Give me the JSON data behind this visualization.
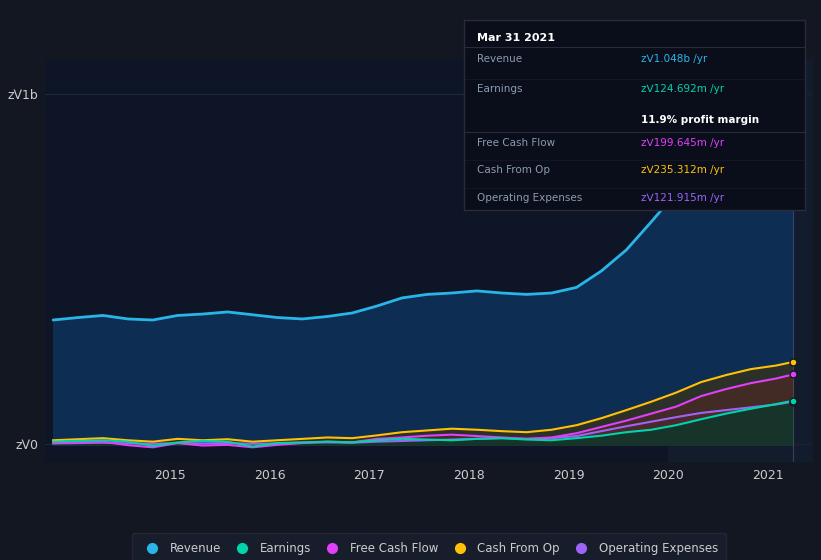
{
  "background_color": "#131722",
  "plot_bg_color": "#0d1526",
  "y_labels": [
    "zᐯ0",
    "zᐯ1b"
  ],
  "y_ticks": [
    0,
    1000000000
  ],
  "x_ticks": [
    2015,
    2016,
    2017,
    2018,
    2019,
    2020,
    2021
  ],
  "ylim": [
    -50000000,
    1100000000
  ],
  "xlim_start": 2013.75,
  "xlim_end": 2021.45,
  "series": {
    "Revenue": {
      "color": "#29b5e8",
      "fill_color": "#0a2a4a",
      "linewidth": 2.0
    },
    "Earnings": {
      "color": "#00d4aa",
      "linewidth": 1.5
    },
    "Free Cash Flow": {
      "color": "#e040fb",
      "linewidth": 1.5
    },
    "Cash From Op": {
      "color": "#ffc107",
      "linewidth": 1.5
    },
    "Operating Expenses": {
      "color": "#9c64f7",
      "linewidth": 1.5
    }
  },
  "revenue_x": [
    2013.83,
    2014.08,
    2014.33,
    2014.58,
    2014.83,
    2015.08,
    2015.33,
    2015.58,
    2015.83,
    2016.08,
    2016.33,
    2016.58,
    2016.83,
    2017.08,
    2017.33,
    2017.58,
    2017.83,
    2018.08,
    2018.33,
    2018.58,
    2018.83,
    2019.08,
    2019.33,
    2019.58,
    2019.83,
    2020.08,
    2020.33,
    2020.58,
    2020.83,
    2021.08,
    2021.25
  ],
  "revenue_y": [
    355000000.0,
    362000000.0,
    368000000.0,
    358000000.0,
    355000000.0,
    368000000.0,
    372000000.0,
    378000000.0,
    370000000.0,
    362000000.0,
    358000000.0,
    365000000.0,
    375000000.0,
    395000000.0,
    418000000.0,
    428000000.0,
    432000000.0,
    438000000.0,
    432000000.0,
    428000000.0,
    432000000.0,
    448000000.0,
    495000000.0,
    555000000.0,
    635000000.0,
    718000000.0,
    798000000.0,
    858000000.0,
    918000000.0,
    978000000.0,
    1048000000.0
  ],
  "earnings_x": [
    2013.83,
    2014.08,
    2014.33,
    2014.58,
    2014.83,
    2015.08,
    2015.33,
    2015.58,
    2015.83,
    2016.08,
    2016.33,
    2016.58,
    2016.83,
    2017.08,
    2017.33,
    2017.58,
    2017.83,
    2018.08,
    2018.33,
    2018.58,
    2018.83,
    2019.08,
    2019.33,
    2019.58,
    2019.83,
    2020.08,
    2020.33,
    2020.58,
    2020.83,
    2021.08,
    2021.25
  ],
  "earnings_y": [
    8000000.0,
    10000000.0,
    12000000.0,
    8000000.0,
    -4000000.0,
    6000000.0,
    10000000.0,
    8000000.0,
    -6000000.0,
    4000000.0,
    6000000.0,
    8000000.0,
    6000000.0,
    12000000.0,
    16000000.0,
    14000000.0,
    12000000.0,
    16000000.0,
    18000000.0,
    14000000.0,
    12000000.0,
    18000000.0,
    25000000.0,
    35000000.0,
    42000000.0,
    55000000.0,
    72000000.0,
    88000000.0,
    102000000.0,
    115000000.0,
    124692000.0
  ],
  "fcf_x": [
    2013.83,
    2014.08,
    2014.33,
    2014.58,
    2014.83,
    2015.08,
    2015.33,
    2015.58,
    2015.83,
    2016.08,
    2016.33,
    2016.58,
    2016.83,
    2017.08,
    2017.33,
    2017.58,
    2017.83,
    2018.08,
    2018.33,
    2018.58,
    2018.83,
    2019.08,
    2019.33,
    2019.58,
    2019.83,
    2020.08,
    2020.33,
    2020.58,
    2020.83,
    2021.08,
    2021.25
  ],
  "fcf_y": [
    4000000.0,
    6000000.0,
    8000000.0,
    -2000000.0,
    -8000000.0,
    4000000.0,
    -3000000.0,
    -1000000.0,
    -8000000.0,
    -1000000.0,
    4000000.0,
    8000000.0,
    6000000.0,
    16000000.0,
    20000000.0,
    25000000.0,
    28000000.0,
    24000000.0,
    20000000.0,
    16000000.0,
    20000000.0,
    32000000.0,
    50000000.0,
    68000000.0,
    88000000.0,
    108000000.0,
    138000000.0,
    158000000.0,
    175000000.0,
    188000000.0,
    199645000.0
  ],
  "cashop_x": [
    2013.83,
    2014.08,
    2014.33,
    2014.58,
    2014.83,
    2015.08,
    2015.33,
    2015.58,
    2015.83,
    2016.08,
    2016.33,
    2016.58,
    2016.83,
    2017.08,
    2017.33,
    2017.58,
    2017.83,
    2018.08,
    2018.33,
    2018.58,
    2018.83,
    2019.08,
    2019.33,
    2019.58,
    2019.83,
    2020.08,
    2020.33,
    2020.58,
    2020.83,
    2021.08,
    2021.25
  ],
  "cashop_y": [
    12000000.0,
    15000000.0,
    18000000.0,
    12000000.0,
    8000000.0,
    16000000.0,
    12000000.0,
    15000000.0,
    8000000.0,
    12000000.0,
    16000000.0,
    20000000.0,
    18000000.0,
    26000000.0,
    35000000.0,
    40000000.0,
    45000000.0,
    42000000.0,
    38000000.0,
    35000000.0,
    42000000.0,
    55000000.0,
    75000000.0,
    98000000.0,
    122000000.0,
    148000000.0,
    178000000.0,
    198000000.0,
    215000000.0,
    225000000.0,
    235312000.0
  ],
  "opex_x": [
    2013.83,
    2014.08,
    2014.33,
    2014.58,
    2014.83,
    2015.08,
    2015.33,
    2015.58,
    2015.83,
    2016.08,
    2016.33,
    2016.58,
    2016.83,
    2017.08,
    2017.33,
    2017.58,
    2017.83,
    2018.08,
    2018.33,
    2018.58,
    2018.83,
    2019.08,
    2019.33,
    2019.58,
    2019.83,
    2020.08,
    2020.33,
    2020.58,
    2020.83,
    2021.08,
    2021.25
  ],
  "opex_y": [
    3000000.0,
    4000000.0,
    5000000.0,
    3000000.0,
    2000000.0,
    4000000.0,
    3000000.0,
    4000000.0,
    2000000.0,
    3000000.0,
    5000000.0,
    6000000.0,
    5000000.0,
    8000000.0,
    10000000.0,
    12000000.0,
    14000000.0,
    16000000.0,
    18000000.0,
    16000000.0,
    18000000.0,
    24000000.0,
    38000000.0,
    52000000.0,
    65000000.0,
    78000000.0,
    90000000.0,
    98000000.0,
    106000000.0,
    114000000.0,
    121915000.0
  ],
  "tooltip": {
    "date": "Mar 31 2021",
    "revenue_label": "Revenue",
    "revenue_value": "zᐯ1.048b /yr",
    "revenue_color": "#29b5e8",
    "earnings_label": "Earnings",
    "earnings_value": "zᐯ124.692m /yr",
    "earnings_color": "#00d4aa",
    "margin_text": "11.9% profit margin",
    "fcf_label": "Free Cash Flow",
    "fcf_value": "zᐯ199.645m /yr",
    "fcf_color": "#e040fb",
    "cashop_label": "Cash From Op",
    "cashop_value": "zᐯ235.312m /yr",
    "cashop_color": "#ffc107",
    "opex_label": "Operating Expenses",
    "opex_value": "zᐯ121.915m /yr",
    "opex_color": "#9c64f7"
  },
  "tooltip_bg": "#0a0e1a",
  "tooltip_border": "#2a2a3a",
  "text_color": "#8a9bb0",
  "text_color_bright": "#cccccc",
  "grid_color": "#1e2a3a",
  "legend_bg": "#1a1f2e",
  "legend_border": "#2a2a3a",
  "highlight_rect_x": 2020.0,
  "vline_x": 2021.25
}
